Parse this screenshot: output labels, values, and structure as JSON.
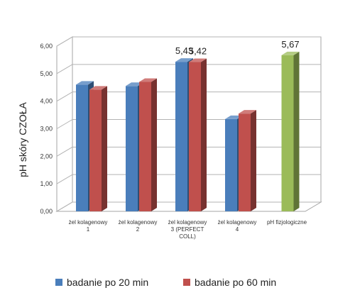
{
  "chart_data": {
    "type": "bar",
    "style": "3d-clustered-column",
    "ylabel": "pH skóry CZOŁA",
    "ylim": [
      0,
      6
    ],
    "y_ticks": [
      "0,00",
      "1,00",
      "2,00",
      "3,00",
      "4,00",
      "5,00",
      "6,00"
    ],
    "grid": true,
    "legend_position": "bottom",
    "categories": [
      {
        "lines": [
          "żel kolagenowy",
          "1"
        ]
      },
      {
        "lines": [
          "żel kolagenowy",
          "2"
        ]
      },
      {
        "lines": [
          "żel kolagenowy",
          "3 (PERFECT",
          "COLL)"
        ]
      },
      {
        "lines": [
          "żel kolagenowy",
          "4"
        ]
      },
      {
        "lines": [
          "pH fizjologiczne"
        ]
      }
    ],
    "series": [
      {
        "name": "badanie po 20 min",
        "color": "#4a7ebb",
        "values": [
          4.6,
          4.55,
          5.43,
          3.35,
          null
        ],
        "labels": [
          null,
          null,
          "5,43",
          null,
          null
        ]
      },
      {
        "name": "badanie po 60 min",
        "color": "#c0504d",
        "values": [
          4.42,
          4.7,
          5.42,
          3.55,
          null
        ],
        "labels": [
          null,
          null,
          "5,42",
          null,
          null
        ]
      },
      {
        "name": null,
        "color": "#9bbb59",
        "values": [
          null,
          null,
          null,
          null,
          5.67
        ],
        "labels": [
          null,
          null,
          null,
          null,
          "5,67"
        ]
      }
    ]
  }
}
